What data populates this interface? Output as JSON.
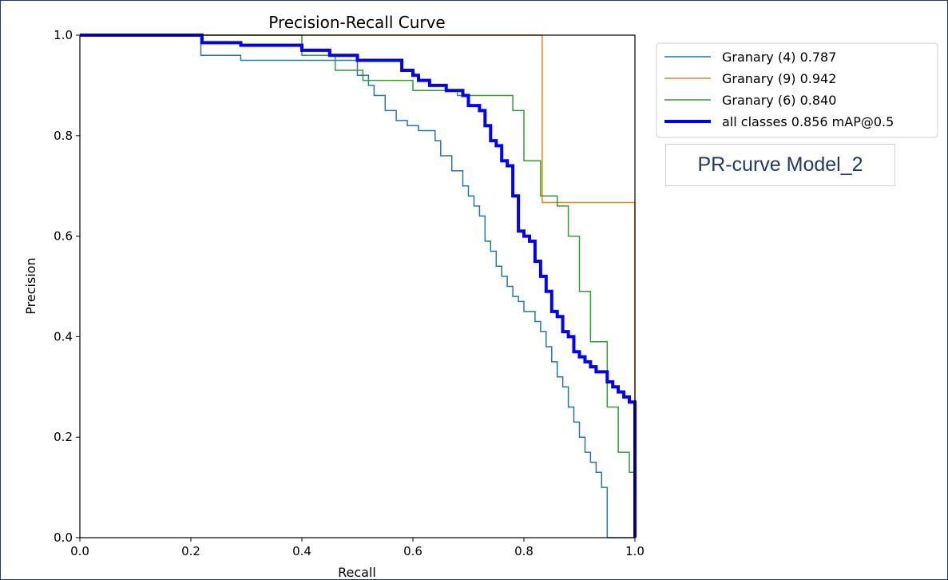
{
  "note": "PR-curve Model_2",
  "chart_data": {
    "type": "line",
    "title": "Precision-Recall Curve",
    "xlabel": "Recall",
    "ylabel": "Precision",
    "xlim": [
      0.0,
      1.0
    ],
    "ylim": [
      0.0,
      1.0
    ],
    "xticks": [
      "0.0",
      "0.2",
      "0.4",
      "0.6",
      "0.8",
      "1.0"
    ],
    "yticks": [
      "0.0",
      "0.2",
      "0.4",
      "0.6",
      "0.8",
      "1.0"
    ],
    "grid": false,
    "legend_position": "outside-top-right",
    "series": [
      {
        "name": "Granary (4) 0.787",
        "color": "#1f77b4",
        "width": 1.5,
        "step": true,
        "x": [
          0.0,
          0.218,
          0.218,
          0.29,
          0.29,
          0.5,
          0.5,
          0.52,
          0.53,
          0.55,
          0.57,
          0.59,
          0.61,
          0.64,
          0.65,
          0.67,
          0.69,
          0.7,
          0.71,
          0.72,
          0.73,
          0.74,
          0.75,
          0.76,
          0.77,
          0.78,
          0.79,
          0.8,
          0.82,
          0.83,
          0.84,
          0.85,
          0.86,
          0.87,
          0.88,
          0.89,
          0.9,
          0.91,
          0.92,
          0.93,
          0.94,
          0.95,
          1.0
        ],
        "y": [
          1.0,
          1.0,
          0.96,
          0.96,
          0.95,
          0.95,
          0.93,
          0.92,
          0.9,
          0.88,
          0.85,
          0.83,
          0.82,
          0.81,
          0.79,
          0.76,
          0.73,
          0.7,
          0.68,
          0.66,
          0.64,
          0.59,
          0.57,
          0.54,
          0.52,
          0.5,
          0.48,
          0.47,
          0.45,
          0.43,
          0.41,
          0.38,
          0.35,
          0.32,
          0.3,
          0.26,
          0.23,
          0.2,
          0.17,
          0.15,
          0.13,
          0.1,
          0.0
        ]
      },
      {
        "name": "Granary (9) 0.942",
        "color": "#ff7f0e",
        "width": 1.5,
        "step": true,
        "x": [
          0.0,
          0.833,
          0.833,
          1.0,
          1.0
        ],
        "y": [
          1.0,
          1.0,
          0.667,
          0.667,
          0.0
        ]
      },
      {
        "name": "Granary (6) 0.840",
        "color": "#2ca02c",
        "width": 1.5,
        "step": true,
        "x": [
          0.0,
          0.4,
          0.4,
          0.46,
          0.46,
          0.51,
          0.51,
          0.6,
          0.6,
          0.68,
          0.68,
          0.78,
          0.78,
          0.8,
          0.8,
          0.83,
          0.83,
          0.86,
          0.86,
          0.88,
          0.88,
          0.9,
          0.9,
          0.92,
          0.92,
          0.95,
          0.95,
          0.97,
          0.97,
          0.99,
          0.99,
          1.0,
          1.0
        ],
        "y": [
          1.0,
          1.0,
          0.96,
          0.96,
          0.93,
          0.93,
          0.91,
          0.91,
          0.89,
          0.89,
          0.88,
          0.88,
          0.85,
          0.85,
          0.75,
          0.75,
          0.68,
          0.68,
          0.66,
          0.66,
          0.6,
          0.6,
          0.49,
          0.49,
          0.39,
          0.39,
          0.26,
          0.26,
          0.17,
          0.17,
          0.13,
          0.13,
          0.0
        ]
      },
      {
        "name": "all classes 0.856 mAP@0.5",
        "color": "#0000ff",
        "width": 4,
        "step": true,
        "x": [
          0.0,
          0.22,
          0.22,
          0.29,
          0.29,
          0.4,
          0.4,
          0.45,
          0.45,
          0.5,
          0.5,
          0.58,
          0.58,
          0.6,
          0.61,
          0.63,
          0.64,
          0.66,
          0.67,
          0.69,
          0.7,
          0.72,
          0.73,
          0.74,
          0.75,
          0.76,
          0.77,
          0.78,
          0.79,
          0.8,
          0.81,
          0.82,
          0.83,
          0.84,
          0.85,
          0.86,
          0.87,
          0.88,
          0.89,
          0.9,
          0.91,
          0.92,
          0.93,
          0.94,
          0.95,
          0.96,
          0.97,
          0.98,
          0.99,
          1.0,
          1.0
        ],
        "y": [
          1.0,
          1.0,
          0.985,
          0.985,
          0.98,
          0.98,
          0.97,
          0.97,
          0.96,
          0.96,
          0.95,
          0.95,
          0.94,
          0.93,
          0.92,
          0.91,
          0.9,
          0.9,
          0.89,
          0.89,
          0.88,
          0.86,
          0.85,
          0.82,
          0.79,
          0.78,
          0.75,
          0.74,
          0.68,
          0.61,
          0.6,
          0.59,
          0.55,
          0.52,
          0.49,
          0.45,
          0.44,
          0.41,
          0.4,
          0.37,
          0.36,
          0.35,
          0.34,
          0.33,
          0.33,
          0.31,
          0.3,
          0.29,
          0.28,
          0.27,
          0.0
        ]
      }
    ]
  }
}
